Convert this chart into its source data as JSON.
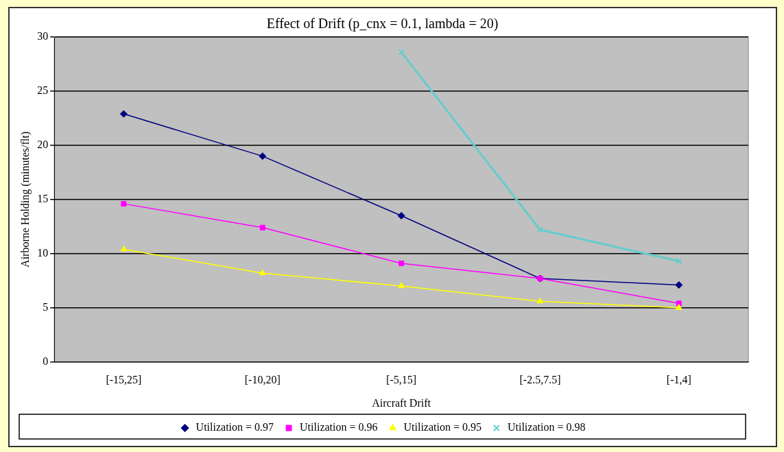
{
  "chart_data": {
    "type": "line",
    "title": "Effect of Drift (p_cnx = 0.1, lambda = 20)",
    "xlabel": "Aircraft Drift",
    "ylabel": "Airborne Holding (minutes/flt)",
    "categories": [
      "[-15,25]",
      "[-10,20]",
      "[-5,15]",
      "[-2.5,7.5]",
      "[-1,4]"
    ],
    "series": [
      {
        "name": "Utilization = 0.97",
        "color": "#000080",
        "marker": "diamond",
        "values": [
          22.9,
          19.0,
          13.5,
          7.7,
          7.1
        ]
      },
      {
        "name": "Utilization = 0.96",
        "color": "#ff00ff",
        "marker": "square",
        "values": [
          14.6,
          12.4,
          9.1,
          7.7,
          5.4
        ]
      },
      {
        "name": "Utilization = 0.95",
        "color": "#ffff00",
        "marker": "triangle",
        "values": [
          10.4,
          8.2,
          7.0,
          5.6,
          5.0
        ]
      },
      {
        "name": "Utilization = 0.98",
        "color": "#66cccc",
        "marker": "cross",
        "values": [
          null,
          null,
          28.6,
          12.2,
          9.3
        ]
      }
    ],
    "ylim": [
      0,
      30
    ],
    "yticks": [
      0,
      5,
      10,
      15,
      20,
      25,
      30
    ],
    "grid": "y",
    "legend": "bottom"
  }
}
